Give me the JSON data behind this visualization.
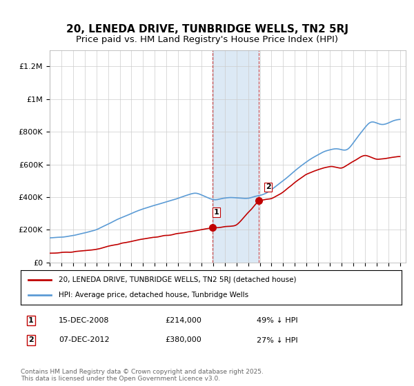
{
  "title": "20, LENEDA DRIVE, TUNBRIDGE WELLS, TN2 5RJ",
  "subtitle": "Price paid vs. HM Land Registry's House Price Index (HPI)",
  "ylabel": "",
  "xlabel": "",
  "ylim": [
    0,
    1300000
  ],
  "yticks": [
    0,
    200000,
    400000,
    600000,
    800000,
    1000000,
    1200000
  ],
  "ytick_labels": [
    "£0",
    "£200K",
    "£400K",
    "£600K",
    "£800K",
    "£1M",
    "£1.2M"
  ],
  "sale1_date": 2008.96,
  "sale1_price": 214000,
  "sale1_label": "1",
  "sale2_date": 2012.93,
  "sale2_price": 380000,
  "sale2_label": "2",
  "hpi_color": "#5b9bd5",
  "price_color": "#c00000",
  "shade_color": "#dce9f5",
  "shade_alpha": 0.5,
  "legend_label1": "20, LENEDA DRIVE, TUNBRIDGE WELLS, TN2 5RJ (detached house)",
  "legend_label2": "HPI: Average price, detached house, Tunbridge Wells",
  "table_row1": [
    "1",
    "15-DEC-2008",
    "£214,000",
    "49% ↓ HPI"
  ],
  "table_row2": [
    "2",
    "07-DEC-2012",
    "£380,000",
    "27% ↓ HPI"
  ],
  "footnote": "Contains HM Land Registry data © Crown copyright and database right 2025.\nThis data is licensed under the Open Government Licence v3.0.",
  "title_fontsize": 11,
  "subtitle_fontsize": 9.5,
  "tick_fontsize": 8,
  "background_color": "#ffffff",
  "grid_color": "#cccccc"
}
